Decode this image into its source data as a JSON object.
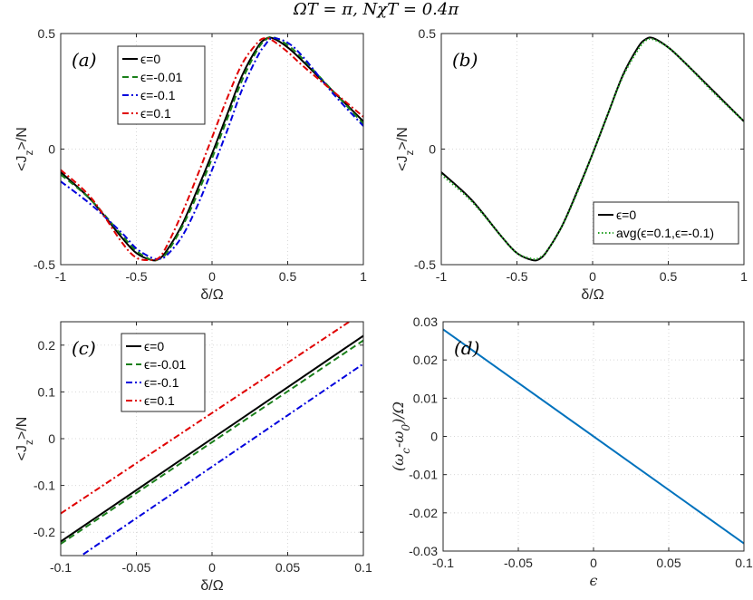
{
  "figure_title": "ΩT = π, NχT = 0.4π",
  "colors": {
    "black": "#000000",
    "green": "#1a7f1a",
    "blue": "#0000dd",
    "red": "#e00000",
    "dotted_green": "#22a022",
    "line_d": "#0072bd",
    "grid": "#d9d9d9",
    "axis": "#262626"
  },
  "chart_data": [
    {
      "panel": "(a)",
      "type": "line",
      "xlabel": "δ/Ω",
      "ylabel": "<J_z>/N",
      "xlim": [
        -1,
        1
      ],
      "ylim": [
        -0.5,
        0.5
      ],
      "xticks": [
        "-1",
        "-0.5",
        "0",
        "0.5",
        "1"
      ],
      "yticks": [
        "-0.5",
        "0",
        "0.5"
      ],
      "grid": true,
      "legend_position": "top-left",
      "series": [
        {
          "name": "ϵ=0",
          "style": "solid",
          "color": "black",
          "x": [
            -1,
            -0.8,
            -0.6,
            -0.5,
            -0.4,
            -0.35,
            -0.3,
            -0.2,
            -0.1,
            0,
            0.1,
            0.2,
            0.3,
            0.35,
            0.4,
            0.5,
            0.6,
            0.8,
            1
          ],
          "y": [
            -0.1,
            -0.22,
            -0.38,
            -0.45,
            -0.48,
            -0.475,
            -0.44,
            -0.33,
            -0.18,
            -0.02,
            0.15,
            0.32,
            0.44,
            0.475,
            0.48,
            0.44,
            0.38,
            0.25,
            0.12
          ]
        },
        {
          "name": "ϵ=-0.01",
          "style": "dashed",
          "color": "green",
          "x": [
            -1,
            -0.8,
            -0.6,
            -0.5,
            -0.4,
            -0.35,
            -0.3,
            -0.2,
            -0.1,
            0,
            0.1,
            0.2,
            0.3,
            0.35,
            0.4,
            0.5,
            0.6,
            0.8,
            1
          ],
          "y": [
            -0.11,
            -0.22,
            -0.37,
            -0.44,
            -0.48,
            -0.475,
            -0.45,
            -0.34,
            -0.2,
            -0.04,
            0.13,
            0.3,
            0.43,
            0.47,
            0.485,
            0.45,
            0.39,
            0.25,
            0.11
          ]
        },
        {
          "name": "ϵ=-0.1",
          "style": "dashdot",
          "color": "blue",
          "x": [
            -1,
            -0.8,
            -0.6,
            -0.5,
            -0.4,
            -0.35,
            -0.3,
            -0.2,
            -0.1,
            0,
            0.1,
            0.2,
            0.3,
            0.35,
            0.4,
            0.5,
            0.6,
            0.8,
            1
          ],
          "y": [
            -0.14,
            -0.24,
            -0.36,
            -0.43,
            -0.47,
            -0.475,
            -0.46,
            -0.38,
            -0.25,
            -0.09,
            0.08,
            0.26,
            0.4,
            0.45,
            0.48,
            0.46,
            0.4,
            0.24,
            0.1
          ]
        },
        {
          "name": "ϵ=0.1",
          "style": "dashdot",
          "color": "red",
          "x": [
            -1,
            -0.8,
            -0.6,
            -0.5,
            -0.4,
            -0.35,
            -0.3,
            -0.2,
            -0.1,
            0,
            0.1,
            0.2,
            0.3,
            0.35,
            0.4,
            0.5,
            0.6,
            0.8,
            1
          ],
          "y": [
            -0.09,
            -0.21,
            -0.4,
            -0.47,
            -0.48,
            -0.47,
            -0.42,
            -0.28,
            -0.12,
            0.05,
            0.22,
            0.37,
            0.46,
            0.48,
            0.47,
            0.42,
            0.36,
            0.25,
            0.14
          ]
        }
      ]
    },
    {
      "panel": "(b)",
      "type": "line",
      "xlabel": "δ/Ω",
      "ylabel": "<J_z>/N",
      "xlim": [
        -1,
        1
      ],
      "ylim": [
        -0.5,
        0.5
      ],
      "xticks": [
        "-1",
        "-0.5",
        "0",
        "0.5",
        "1"
      ],
      "yticks": [
        "-0.5",
        "0",
        "0.5"
      ],
      "grid": true,
      "legend_position": "bottom-right",
      "series": [
        {
          "name": "ϵ=0",
          "style": "solid",
          "color": "black",
          "x": [
            -1,
            -0.8,
            -0.6,
            -0.5,
            -0.4,
            -0.35,
            -0.3,
            -0.2,
            -0.1,
            0,
            0.1,
            0.2,
            0.3,
            0.35,
            0.4,
            0.5,
            0.6,
            0.8,
            1
          ],
          "y": [
            -0.1,
            -0.22,
            -0.38,
            -0.45,
            -0.48,
            -0.475,
            -0.44,
            -0.33,
            -0.18,
            -0.02,
            0.15,
            0.32,
            0.44,
            0.475,
            0.48,
            0.44,
            0.38,
            0.25,
            0.12
          ]
        },
        {
          "name": "avg(ϵ=0.1,ϵ=-0.1)",
          "style": "dotted",
          "color": "dotted_green",
          "x": [
            -1,
            -0.8,
            -0.6,
            -0.5,
            -0.4,
            -0.35,
            -0.3,
            -0.2,
            -0.1,
            0,
            0.1,
            0.2,
            0.3,
            0.35,
            0.4,
            0.5,
            0.6,
            0.8,
            1
          ],
          "y": [
            -0.11,
            -0.225,
            -0.38,
            -0.45,
            -0.475,
            -0.47,
            -0.44,
            -0.33,
            -0.185,
            -0.02,
            0.15,
            0.315,
            0.43,
            0.47,
            0.475,
            0.44,
            0.38,
            0.245,
            0.12
          ]
        }
      ]
    },
    {
      "panel": "(c)",
      "type": "line",
      "xlabel": "δ/Ω",
      "ylabel": "<J_z>/N",
      "xlim": [
        -0.1,
        0.1
      ],
      "ylim": [
        -0.25,
        0.25
      ],
      "xticks": [
        "-0.1",
        "-0.05",
        "0",
        "0.05",
        "0.1"
      ],
      "yticks": [
        "-0.2",
        "-0.1",
        "0",
        "0.1",
        "0.2"
      ],
      "grid": true,
      "legend_position": "top-left",
      "series": [
        {
          "name": "ϵ=0",
          "style": "solid",
          "color": "black",
          "x": [
            -0.1,
            0.1
          ],
          "y": [
            -0.22,
            0.22
          ]
        },
        {
          "name": "ϵ=-0.01",
          "style": "dashed",
          "color": "green",
          "x": [
            -0.1,
            0.1
          ],
          "y": [
            -0.225,
            0.21
          ]
        },
        {
          "name": "ϵ=-0.1",
          "style": "dashdot",
          "color": "blue",
          "x": [
            -0.1,
            0.1
          ],
          "y": [
            -0.28,
            0.16
          ]
        },
        {
          "name": "ϵ=0.1",
          "style": "dashdot",
          "color": "red",
          "x": [
            -0.1,
            0.1
          ],
          "y": [
            -0.16,
            0.27
          ]
        }
      ]
    },
    {
      "panel": "(d)",
      "type": "line",
      "xlabel": "ϵ",
      "ylabel": "(ω_c-ω_0)/Ω",
      "xlim": [
        -0.1,
        0.1
      ],
      "ylim": [
        -0.03,
        0.03
      ],
      "xticks": [
        "-0.1",
        "-0.05",
        "0",
        "0.05",
        "0.1"
      ],
      "yticks": [
        "-0.03",
        "-0.02",
        "-0.01",
        "0",
        "0.01",
        "0.02",
        "0.03"
      ],
      "grid": true,
      "series": [
        {
          "style": "solid",
          "color": "line_d",
          "x": [
            -0.1,
            0.1
          ],
          "y": [
            0.028,
            -0.028
          ]
        }
      ]
    }
  ]
}
